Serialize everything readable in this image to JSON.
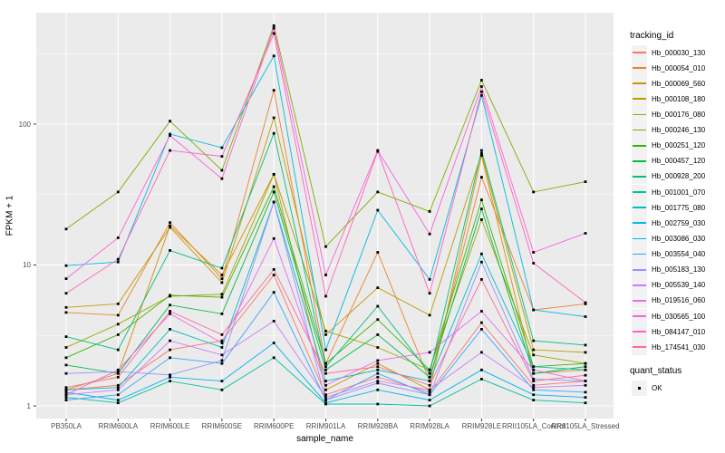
{
  "chart_data": {
    "type": "line",
    "title": "",
    "xlabel": "sample_name",
    "ylabel": "FPKM + 1",
    "y_scale": "log10",
    "ylim": [
      1,
      620
    ],
    "y_ticks": [
      1,
      10,
      100
    ],
    "grid": true,
    "panel_bg": "#EBEBEB",
    "grid_color": "#FFFFFF",
    "axis_text_color": "#4d4d4d",
    "legend_position": "right",
    "legend_title": "tracking_id",
    "point_legend": {
      "title": "quant_status",
      "label": "OK",
      "marker": "black-square",
      "marker_color": "#000000"
    },
    "categories": [
      "PB350LA",
      "RRIM600LA",
      "RRIM600LE",
      "RRIM600SE",
      "RRIM600PE",
      "RRIM901LA",
      "RRIM928BA",
      "RRIM928LA",
      "RRIM928LE",
      "RRII105LA_Control",
      "RRII105LA_Stressed"
    ],
    "series": [
      {
        "name": "Hb_000030_130",
        "color": "#F8766D",
        "values": [
          1.3,
          1.4,
          2.5,
          2.9,
          8.5,
          1.2,
          1.6,
          1.25,
          3.9,
          1.4,
          1.5
        ]
      },
      {
        "name": "Hb_000054_010",
        "color": "#EA8331",
        "values": [
          4.6,
          4.4,
          20,
          8.0,
          174,
          2.0,
          12.3,
          1.5,
          42,
          4.8,
          5.3
        ]
      },
      {
        "name": "Hb_000069_560",
        "color": "#D89000",
        "values": [
          1.3,
          1.7,
          19,
          8.5,
          44,
          1.3,
          2.0,
          1.3,
          60,
          1.7,
          1.8
        ]
      },
      {
        "name": "Hb_000108_180",
        "color": "#C09B00",
        "values": [
          5.0,
          5.3,
          18.5,
          7.5,
          111,
          3.2,
          6.9,
          4.4,
          62,
          2.5,
          2.4
        ]
      },
      {
        "name": "Hb_000176_080",
        "color": "#A3A500",
        "values": [
          2.6,
          3.8,
          6.0,
          6.2,
          44,
          3.4,
          2.6,
          1.8,
          21,
          2.3,
          2.0
        ]
      },
      {
        "name": "Hb_000246_130",
        "color": "#7CAE00",
        "values": [
          18,
          33,
          105,
          47,
          500,
          13.5,
          33,
          24,
          205,
          33,
          39
        ]
      },
      {
        "name": "Hb_000251_120",
        "color": "#39B600",
        "values": [
          2.2,
          3.2,
          6.1,
          5.9,
          36,
          2.0,
          4.1,
          1.8,
          29,
          1.9,
          2.0
        ]
      },
      {
        "name": "Hb_000457_120",
        "color": "#00BB4E",
        "values": [
          1.95,
          1.7,
          5.2,
          4.5,
          33,
          1.8,
          3.2,
          1.6,
          25,
          1.7,
          1.9
        ]
      },
      {
        "name": "Hb_000928_200",
        "color": "#00BF7D",
        "values": [
          3.1,
          2.5,
          12.7,
          9.5,
          86,
          1.9,
          5.1,
          1.7,
          65,
          2.9,
          2.7
        ]
      },
      {
        "name": "Hb_001001_070",
        "color": "#00C1A3",
        "values": [
          1.15,
          1.05,
          1.5,
          1.3,
          2.2,
          1.03,
          1.03,
          1.0,
          1.55,
          1.1,
          1.05
        ]
      },
      {
        "name": "Hb_001775_080",
        "color": "#00BFC4",
        "values": [
          1.3,
          1.35,
          3.5,
          2.6,
          28,
          1.5,
          1.8,
          1.5,
          12,
          1.9,
          1.8
        ]
      },
      {
        "name": "Hb_002759_030",
        "color": "#00BAE0",
        "values": [
          9.9,
          10.5,
          85,
          68,
          305,
          2.5,
          24.5,
          7.9,
          160,
          4.8,
          4.3
        ]
      },
      {
        "name": "Hb_003086_030",
        "color": "#00B0F6",
        "values": [
          1.25,
          1.1,
          1.6,
          1.5,
          2.8,
          1.05,
          1.3,
          1.1,
          1.8,
          1.2,
          1.15
        ]
      },
      {
        "name": "Hb_003554_040",
        "color": "#35A2FF",
        "values": [
          1.1,
          1.2,
          2.2,
          2.0,
          6.4,
          1.1,
          1.7,
          1.2,
          3.5,
          1.3,
          1.25
        ]
      },
      {
        "name": "Hb_005183_130",
        "color": "#9590FF",
        "values": [
          1.7,
          1.75,
          1.66,
          2.1,
          28,
          1.1,
          1.45,
          1.2,
          10.5,
          1.55,
          1.5
        ]
      },
      {
        "name": "Hb_005539_140",
        "color": "#C77CFF",
        "values": [
          1.2,
          1.3,
          2.9,
          2.3,
          4.0,
          1.15,
          1.5,
          1.3,
          2.4,
          1.35,
          1.4
        ]
      },
      {
        "name": "Hb_019516_060",
        "color": "#E76BF3",
        "values": [
          1.2,
          1.8,
          4.5,
          2.8,
          15.4,
          1.4,
          2.1,
          2.4,
          4.7,
          1.8,
          1.5
        ]
      },
      {
        "name": "Hb_030565_100",
        "color": "#FA62DB",
        "values": [
          8.0,
          15.6,
          83,
          41,
          480,
          8.5,
          65,
          16.6,
          185,
          12.3,
          16.8
        ]
      },
      {
        "name": "Hb_084147_010",
        "color": "#FF62BC",
        "values": [
          6.3,
          11,
          65,
          59,
          440,
          6.0,
          64,
          6.3,
          170,
          10.3,
          5.4
        ]
      },
      {
        "name": "Hb_174541_030",
        "color": "#FF6A98",
        "values": [
          1.35,
          1.6,
          4.7,
          3.2,
          9.3,
          1.7,
          1.9,
          1.4,
          7.9,
          1.5,
          1.65
        ]
      }
    ]
  }
}
